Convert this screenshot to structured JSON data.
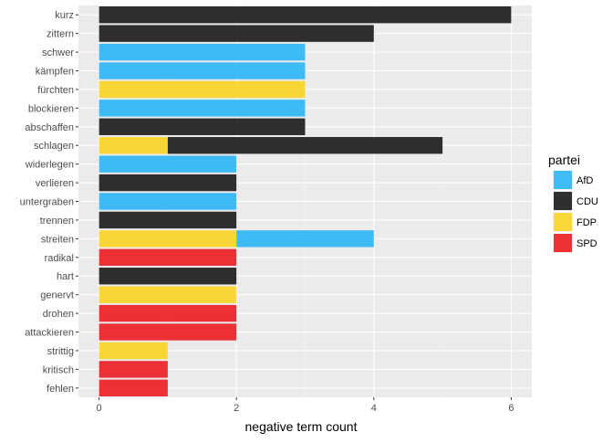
{
  "chart_data": {
    "type": "bar",
    "orientation": "horizontal",
    "stacked": true,
    "categories": [
      "kurz",
      "zittern",
      "schwer",
      "kämpfen",
      "fürchten",
      "blockieren",
      "abschaffen",
      "schlagen",
      "widerlegen",
      "verlieren",
      "untergraben",
      "trennen",
      "streiten",
      "radikal",
      "hart",
      "genervt",
      "drohen",
      "attackieren",
      "strittig",
      "kritisch",
      "fehlen"
    ],
    "segments": [
      {
        "category": "kurz",
        "partei": "CDU",
        "value": 6
      },
      {
        "category": "zittern",
        "partei": "CDU",
        "value": 4
      },
      {
        "category": "schwer",
        "partei": "AfD",
        "value": 3
      },
      {
        "category": "kämpfen",
        "partei": "AfD",
        "value": 3
      },
      {
        "category": "fürchten",
        "partei": "FDP",
        "value": 3
      },
      {
        "category": "blockieren",
        "partei": "AfD",
        "value": 3
      },
      {
        "category": "abschaffen",
        "partei": "CDU",
        "value": 3
      },
      {
        "category": "schlagen",
        "partei": "FDP",
        "value": 1
      },
      {
        "category": "schlagen",
        "partei": "CDU",
        "value": 4
      },
      {
        "category": "widerlegen",
        "partei": "AfD",
        "value": 2
      },
      {
        "category": "verlieren",
        "partei": "CDU",
        "value": 2
      },
      {
        "category": "untergraben",
        "partei": "AfD",
        "value": 2
      },
      {
        "category": "trennen",
        "partei": "CDU",
        "value": 2
      },
      {
        "category": "streiten",
        "partei": "FDP",
        "value": 2
      },
      {
        "category": "streiten",
        "partei": "AfD",
        "value": 2
      },
      {
        "category": "radikal",
        "partei": "SPD",
        "value": 2
      },
      {
        "category": "hart",
        "partei": "CDU",
        "value": 2
      },
      {
        "category": "genervt",
        "partei": "FDP",
        "value": 2
      },
      {
        "category": "drohen",
        "partei": "SPD",
        "value": 2
      },
      {
        "category": "attackieren",
        "partei": "SPD",
        "value": 2
      },
      {
        "category": "strittig",
        "partei": "FDP",
        "value": 1
      },
      {
        "category": "kritisch",
        "partei": "SPD",
        "value": 1
      },
      {
        "category": "fehlen",
        "partei": "SPD",
        "value": 1
      }
    ],
    "xlabel": "negative term count",
    "ylabel": "",
    "xlim": [
      -0.3,
      6.3
    ],
    "xticks": [
      0,
      2,
      4,
      6
    ],
    "tick_labels": [
      "0",
      "2",
      "4",
      "6"
    ],
    "grid": true,
    "legend": {
      "title": "partei",
      "position": "right",
      "entries": [
        {
          "name": "AfD",
          "color": "#2BB5F6"
        },
        {
          "name": "CDU",
          "color": "#1A1A1A"
        },
        {
          "name": "FDP",
          "color": "#FAD422"
        },
        {
          "name": "SPD",
          "color": "#EB1D22"
        }
      ]
    },
    "colors": {
      "panel": "#EBEBEB",
      "grid": "#FFFFFF",
      "axis_text": "#4D4D4D"
    }
  }
}
